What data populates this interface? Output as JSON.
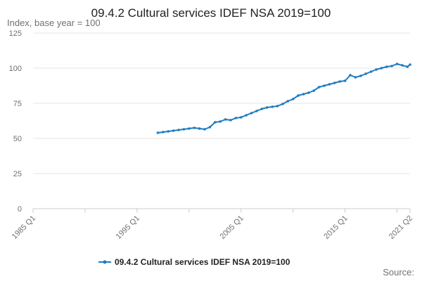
{
  "chart_data": {
    "type": "line",
    "title": "09.4.2 Cultural services IDEF NSA 2019=100",
    "ylabel": "Index, base year = 100",
    "xlabel": "",
    "ylim": [
      0,
      125
    ],
    "yticks": [
      "0",
      "25",
      "50",
      "75",
      "100",
      "125"
    ],
    "xlim": [
      "1985 Q1",
      "2021 Q2"
    ],
    "xticks": [
      "1985 Q1",
      "1995 Q1",
      "2005 Q1",
      "2015 Q1",
      "2021 Q2"
    ],
    "grid": "horizontal",
    "legend_position": "bottom",
    "series": [
      {
        "name": "09.4.2 Cultural services IDEF NSA 2019=100",
        "color": "#1f7bbf",
        "x": [
          "1997 Q1",
          "1997 Q3",
          "1998 Q1",
          "1998 Q3",
          "1999 Q1",
          "1999 Q3",
          "2000 Q1",
          "2000 Q3",
          "2001 Q1",
          "2001 Q3",
          "2002 Q1",
          "2002 Q3",
          "2003 Q1",
          "2003 Q3",
          "2004 Q1",
          "2004 Q3",
          "2005 Q1",
          "2005 Q3",
          "2006 Q1",
          "2006 Q3",
          "2007 Q1",
          "2007 Q3",
          "2008 Q1",
          "2008 Q3",
          "2009 Q1",
          "2009 Q3",
          "2010 Q1",
          "2010 Q3",
          "2011 Q1",
          "2011 Q3",
          "2012 Q1",
          "2012 Q3",
          "2013 Q1",
          "2013 Q3",
          "2014 Q1",
          "2014 Q3",
          "2015 Q1",
          "2015 Q3",
          "2016 Q1",
          "2016 Q3",
          "2017 Q1",
          "2017 Q3",
          "2018 Q1",
          "2018 Q3",
          "2019 Q1",
          "2019 Q3",
          "2020 Q1",
          "2020 Q3",
          "2021 Q1",
          "2021 Q2"
        ],
        "values": [
          54,
          54.5,
          55,
          55.5,
          56,
          56.5,
          57,
          57.5,
          57,
          56.5,
          58,
          61.5,
          62,
          63.5,
          63,
          64.5,
          65,
          66.5,
          68,
          69.5,
          71,
          72,
          72.5,
          73,
          74.5,
          76.5,
          78,
          80.5,
          81.5,
          82.5,
          84,
          86.5,
          87.5,
          88.5,
          89.5,
          90.5,
          91,
          95,
          93.5,
          94.5,
          96,
          97.5,
          99,
          100,
          101,
          101.5,
          103,
          102,
          101,
          102.5
        ]
      }
    ]
  },
  "source_label": "Source:"
}
